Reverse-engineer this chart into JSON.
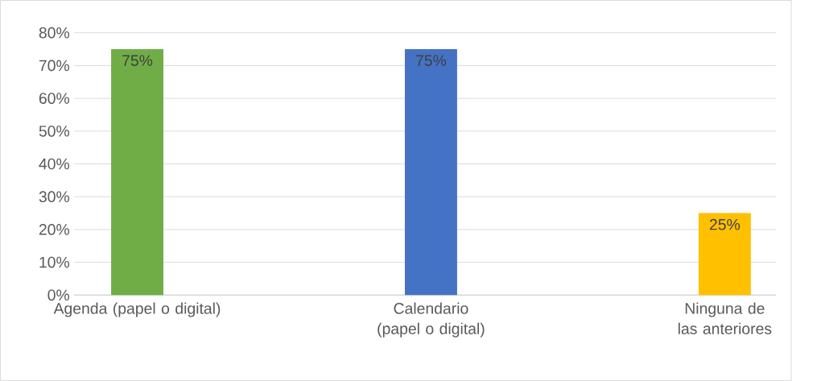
{
  "chart_data": {
    "type": "bar",
    "categories": [
      "Agenda (papel o digital)",
      "Calendario (papel o digital)",
      "Ninguna de las anteriores"
    ],
    "values": [
      75,
      75,
      25
    ],
    "colors": [
      "#70ad47",
      "#4472c4",
      "#ffc000"
    ],
    "value_labels": [
      "75%",
      "75%",
      "25%"
    ],
    "ylim": [
      0,
      80
    ],
    "yticks": [
      {
        "value": 0,
        "label": "0%"
      },
      {
        "value": 10,
        "label": "10%"
      },
      {
        "value": 20,
        "label": "20%"
      },
      {
        "value": 30,
        "label": "30%"
      },
      {
        "value": 40,
        "label": "40%"
      },
      {
        "value": 50,
        "label": "50%"
      },
      {
        "value": 60,
        "label": "60%"
      },
      {
        "value": 70,
        "label": "70%"
      },
      {
        "value": 80,
        "label": "80%"
      }
    ],
    "grid": "y"
  }
}
